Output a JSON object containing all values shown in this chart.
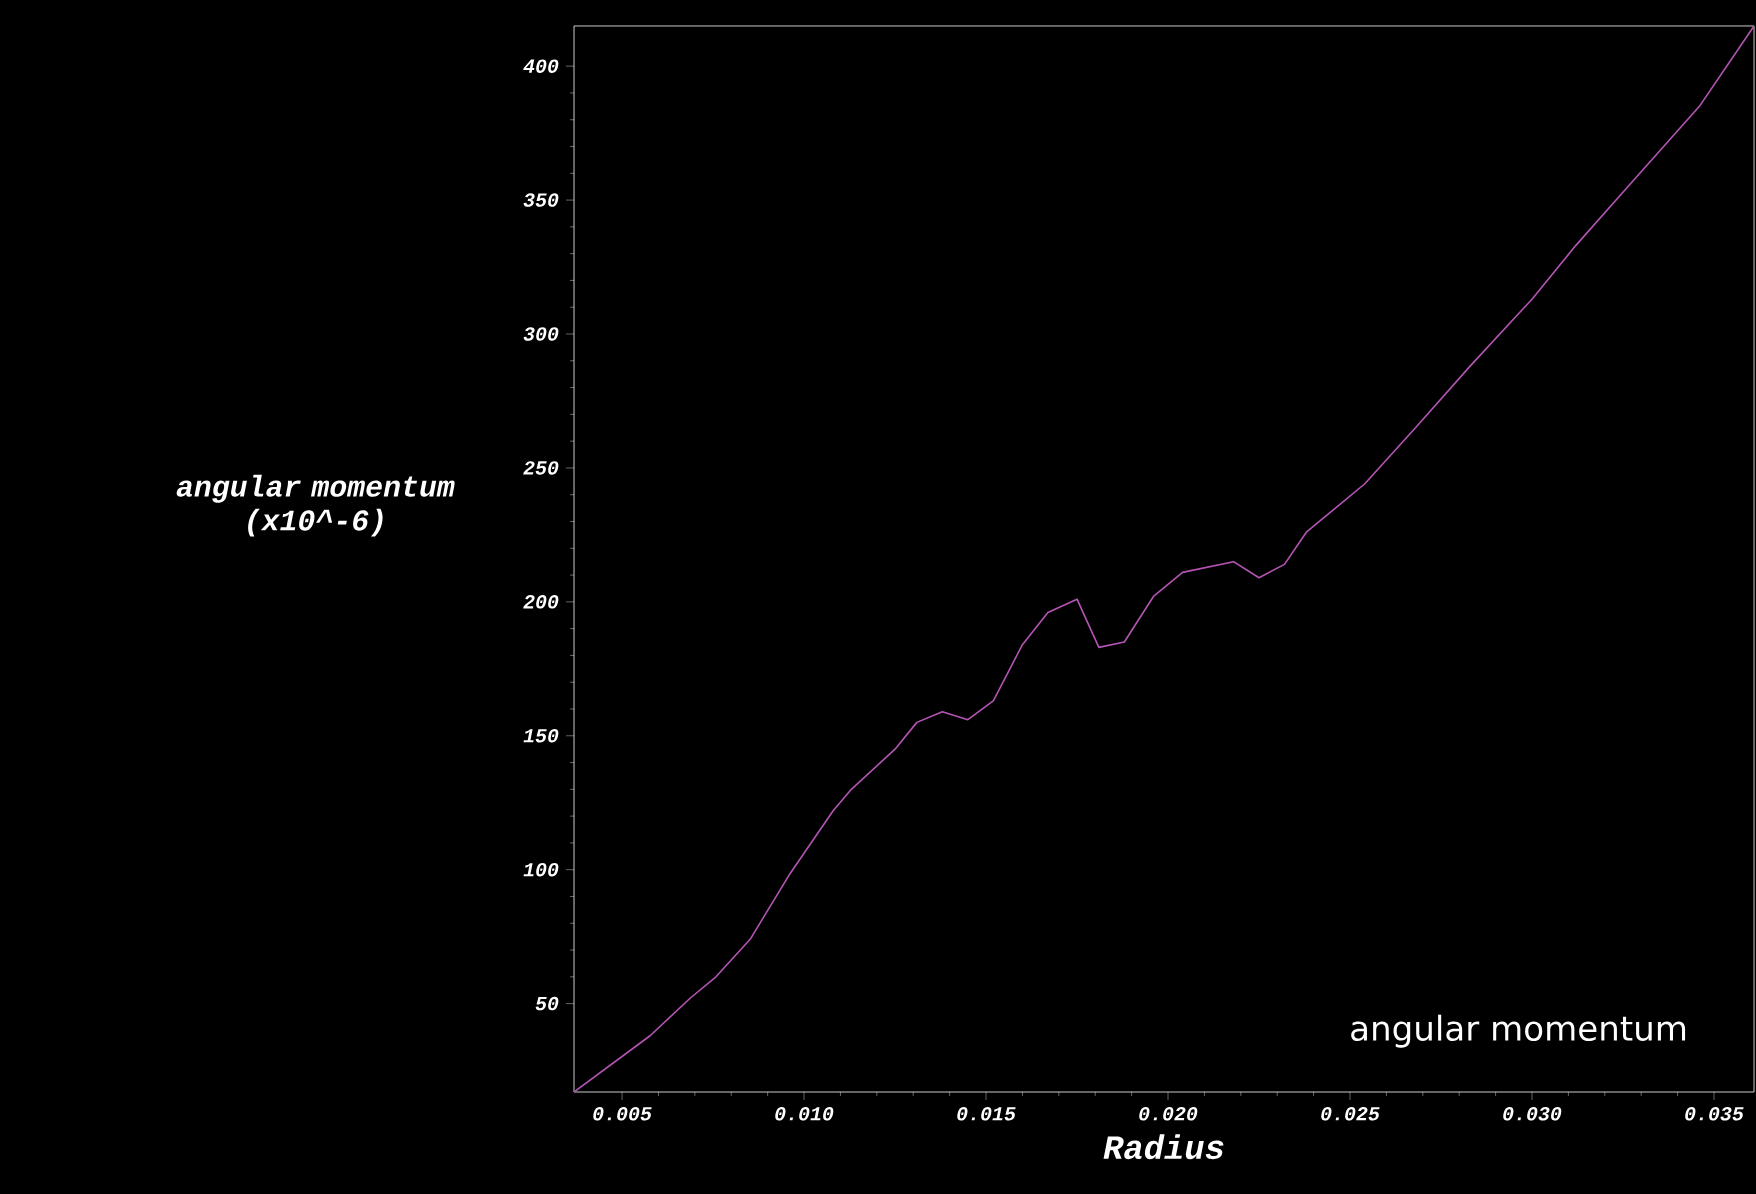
{
  "chart_data": {
    "type": "line",
    "xlabel": "Radius",
    "ylabel": "angular momentum (x10^-6)",
    "annotations": [
      "angular momentum"
    ],
    "x": [
      0.00368,
      0.00577,
      0.00687,
      0.00758,
      0.00852,
      0.00959,
      0.0108,
      0.0113,
      0.0125,
      0.0131,
      0.0138,
      0.0145,
      0.0152,
      0.016,
      0.0167,
      0.0175,
      0.0181,
      0.0188,
      0.0196,
      0.0204,
      0.0218,
      0.0225,
      0.0232,
      0.0238,
      0.0254,
      0.0268,
      0.0283,
      0.03,
      0.0312,
      0.0327,
      0.0346,
      0.0361
    ],
    "series": [
      {
        "color": "#b455b4",
        "values": [
          17,
          38,
          52,
          60,
          74,
          98,
          122,
          130,
          145,
          155,
          159,
          156,
          163,
          184,
          196,
          201,
          183,
          185,
          202,
          211,
          215,
          209,
          214,
          226,
          244,
          265,
          288,
          313,
          333,
          356,
          385,
          415
        ]
      }
    ],
    "xlim": [
      0.00368,
      0.0361
    ],
    "ylim": [
      17,
      415
    ],
    "xticks": [
      0.005,
      {
        "value": 0.01,
        "label": "0.010"
      },
      0.015,
      {
        "value": 0.02,
        "label": "0.020"
      },
      0.025,
      {
        "value": 0.03,
        "label": "0.030"
      },
      0.035
    ],
    "yticks": [
      50,
      100,
      150,
      200,
      250,
      300,
      350,
      400
    ],
    "marker": "none",
    "line_style": "solid"
  }
}
